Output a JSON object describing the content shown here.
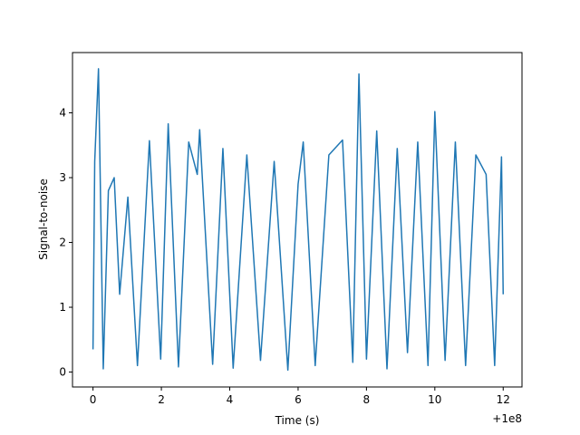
{
  "chart_data": {
    "type": "line",
    "title": "",
    "xlabel": "Time (s)",
    "ylabel": "Signal-to-noise",
    "x_offset_label": "+1e8",
    "xlim": [
      -0.6,
      12.55
    ],
    "ylim": [
      -0.23,
      4.93
    ],
    "xticks": [
      0,
      2,
      4,
      6,
      8,
      10,
      12
    ],
    "xtick_labels": [
      "0",
      "2",
      "4",
      "6",
      "8",
      "10",
      "12"
    ],
    "yticks": [
      0,
      1,
      2,
      3,
      4
    ],
    "ytick_labels": [
      "0",
      "1",
      "2",
      "3",
      "4"
    ],
    "grid": false,
    "series_color": "#1f77b4",
    "series": [
      {
        "name": "",
        "x": [
          0.0,
          0.05,
          0.16,
          0.3,
          0.45,
          0.62,
          0.78,
          1.02,
          1.3,
          1.65,
          1.98,
          2.2,
          2.5,
          2.8,
          3.05,
          3.12,
          3.5,
          3.8,
          4.1,
          4.5,
          4.9,
          5.3,
          5.7,
          6.0,
          6.15,
          6.5,
          6.9,
          7.3,
          7.6,
          7.78,
          8.0,
          8.3,
          8.6,
          8.9,
          9.2,
          9.5,
          9.8,
          10.0,
          10.3,
          10.6,
          10.9,
          11.2,
          11.5,
          11.75,
          11.95,
          12.0
        ],
        "y": [
          0.35,
          3.25,
          4.68,
          0.05,
          2.8,
          3.0,
          1.2,
          2.7,
          0.1,
          3.57,
          0.2,
          3.83,
          0.08,
          3.55,
          3.05,
          3.74,
          0.12,
          3.45,
          0.06,
          3.35,
          0.18,
          3.25,
          0.03,
          2.9,
          3.55,
          0.1,
          3.35,
          3.58,
          0.15,
          4.6,
          0.2,
          3.72,
          0.05,
          3.45,
          0.3,
          3.55,
          0.1,
          4.02,
          0.18,
          3.55,
          0.1,
          3.35,
          3.05,
          0.1,
          3.32,
          1.2
        ]
      }
    ]
  }
}
